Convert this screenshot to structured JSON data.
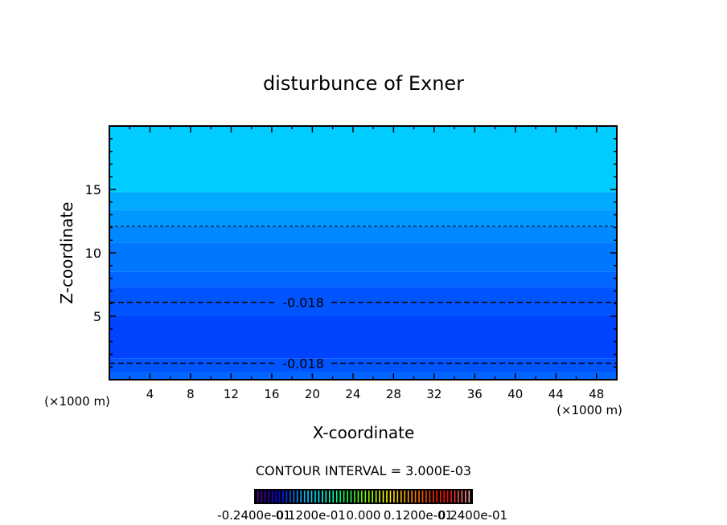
{
  "chart_data": {
    "type": "heatmap",
    "title": "disturbunce of Exner",
    "xlabel": "X-coordinate",
    "ylabel": "Z-coordinate",
    "x_unit_label": "(×1000 m)",
    "y_unit_label": "(×1000 m)",
    "xlim": [
      0,
      50
    ],
    "ylim": [
      0,
      20
    ],
    "x_ticks": [
      4,
      8,
      12,
      16,
      20,
      24,
      28,
      32,
      36,
      40,
      44,
      48
    ],
    "y_ticks": [
      5,
      10,
      15
    ],
    "filled_bands": [
      {
        "z_from": 0,
        "z_to": 0.6,
        "color": "#0066ff"
      },
      {
        "z_from": 0.6,
        "z_to": 1.7,
        "color": "#0055ff"
      },
      {
        "z_from": 1.7,
        "z_to": 5.0,
        "color": "#0044ff"
      },
      {
        "z_from": 5.0,
        "z_to": 7.3,
        "color": "#0055ff"
      },
      {
        "z_from": 7.3,
        "z_to": 8.5,
        "color": "#0066ff"
      },
      {
        "z_from": 8.5,
        "z_to": 10.8,
        "color": "#0077ff"
      },
      {
        "z_from": 10.8,
        "z_to": 12.1,
        "color": "#0088ff"
      },
      {
        "z_from": 12.1,
        "z_to": 13.4,
        "color": "#0099ff"
      },
      {
        "z_from": 13.4,
        "z_to": 14.8,
        "color": "#00aaff"
      },
      {
        "z_from": 14.8,
        "z_to": 20,
        "color": "#00ccff"
      }
    ],
    "contours": [
      {
        "z": 12.1,
        "label": ""
      },
      {
        "z": 6.1,
        "label": "-0.018"
      },
      {
        "z": 1.3,
        "label": "-0.018"
      }
    ],
    "contour_interval_text": "CONTOUR INTERVAL = 3.000E-03",
    "colorbar": {
      "labels": [
        "-0.2400e-01",
        "-0.1200e-01",
        "0.000",
        "0.1200e-01",
        "0.2400e-01"
      ],
      "colors": [
        "#5a00a0",
        "#0000ff",
        "#00aaff",
        "#00ffff",
        "#00ff66",
        "#66ff00",
        "#ffff00",
        "#ffaa00",
        "#ff4400",
        "#ff0000",
        "#ffaaaa"
      ]
    }
  }
}
